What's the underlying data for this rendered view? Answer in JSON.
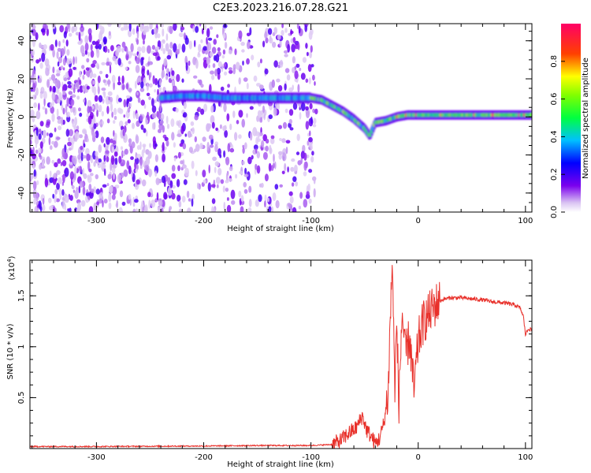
{
  "title": "C2E3.2023.216.07.28.G21",
  "chart_data": [
    {
      "type": "heatmap",
      "xlabel": "Height of straight line (km)",
      "ylabel": "Frequency (Hz)",
      "xlim": [
        -362,
        106
      ],
      "ylim": [
        -50,
        49
      ],
      "xticks": [
        -300,
        -200,
        -100,
        0,
        100
      ],
      "yticks": [
        -40,
        -20,
        0,
        20,
        40
      ],
      "colorbar": {
        "label": "Normalized spectral amplitude",
        "range": [
          0.0,
          1.0
        ],
        "ticks": [
          0.0,
          0.2,
          0.4,
          0.6,
          0.8
        ],
        "colors": [
          "#e8d9f7",
          "#7b00ee",
          "#0000ff",
          "#00ffff",
          "#00ff00",
          "#ffff00",
          "#ff0000",
          "#ff0066"
        ]
      },
      "noise_region_x": [
        -362,
        -95
      ],
      "signal_ridge": {
        "x": [
          -240,
          -220,
          -200,
          -180,
          -160,
          -140,
          -120,
          -100,
          -90,
          -80,
          -70,
          -60,
          -50,
          -45,
          -40,
          -30,
          -20,
          -10,
          0,
          20,
          40,
          60,
          80,
          100,
          106
        ],
        "y": [
          10,
          11,
          11,
          10,
          10,
          10,
          10,
          10,
          9,
          6,
          3,
          -1,
          -6,
          -10,
          -3,
          -2,
          0,
          1,
          1,
          1,
          1,
          1,
          1,
          1,
          1
        ]
      },
      "grid": false
    },
    {
      "type": "line",
      "xlabel": "Height of straight line (km)",
      "ylabel": "SNR (10 * v/v)",
      "multiplier": "(x10",
      "multiplier_exp": "4",
      "multiplier_close": ")",
      "xlim": [
        -362,
        106
      ],
      "ylim": [
        0,
        1.85
      ],
      "xticks": [
        -300,
        -200,
        -100,
        0,
        100
      ],
      "yticks": [
        0.5,
        1.0,
        1.5
      ],
      "series": [
        {
          "color": "#e8302a",
          "x": [
            -362,
            -300,
            -200,
            -150,
            -100,
            -80,
            -72,
            -65,
            -58,
            -52,
            -48,
            -44,
            -40,
            -36,
            -32,
            -28,
            -26,
            -24,
            -22,
            -20,
            -18,
            -15,
            -12,
            -8,
            -4,
            0,
            5,
            10,
            15,
            20,
            25,
            30,
            40,
            50,
            60,
            70,
            80,
            90,
            95,
            98,
            100,
            103,
            106
          ],
          "y": [
            0.02,
            0.02,
            0.025,
            0.03,
            0.03,
            0.04,
            0.08,
            0.15,
            0.2,
            0.32,
            0.18,
            0.12,
            0.05,
            0.1,
            0.25,
            0.55,
            1.3,
            1.85,
            0.6,
            1.2,
            0.45,
            1.35,
            0.9,
            1.1,
            0.55,
            1.05,
            1.25,
            1.32,
            1.4,
            1.45,
            1.47,
            1.48,
            1.48,
            1.47,
            1.46,
            1.44,
            1.43,
            1.41,
            1.38,
            1.3,
            1.12,
            1.18,
            1.16
          ]
        }
      ],
      "grid": false
    }
  ]
}
